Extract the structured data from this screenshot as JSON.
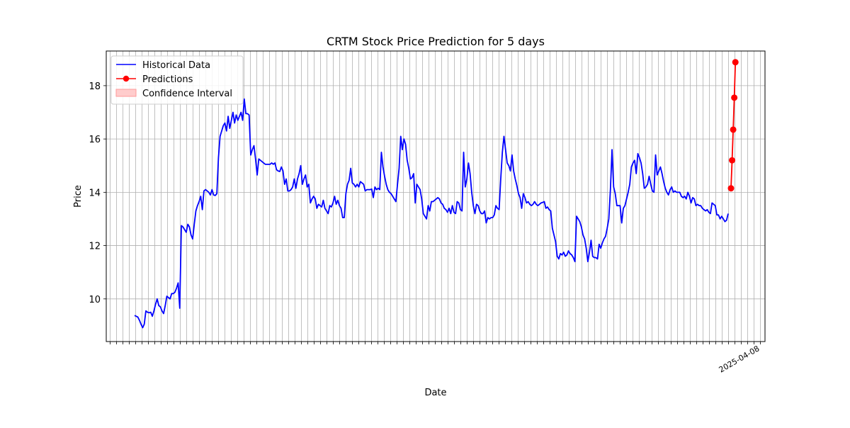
{
  "chart_data": {
    "type": "line",
    "title": "CRTM Stock Price Prediction for 5 days",
    "xlabel": "Date",
    "ylabel": "Price",
    "ylim": [
      8.4,
      19.3
    ],
    "y_ticks": [
      10,
      12,
      14,
      16,
      18
    ],
    "grid": true,
    "legend_position": "upper-left",
    "x_tick_labels_note": "x tick labels are dense, rotated dates that overlap and are illegible except the last one",
    "x_last_tick_label": "2025-04-08",
    "series": [
      {
        "name": "Historical Data",
        "color": "#0000ff",
        "marker": "none",
        "values": [
          9.38,
          9.35,
          9.32,
          9.2,
          9.05,
          8.92,
          9.05,
          9.55,
          9.5,
          9.48,
          9.5,
          9.35,
          9.55,
          9.8,
          10.0,
          9.75,
          9.7,
          9.55,
          9.45,
          9.75,
          10.1,
          10.05,
          10.0,
          10.2,
          10.2,
          10.25,
          10.4,
          10.6,
          9.65,
          12.75,
          12.7,
          12.6,
          12.5,
          12.8,
          12.7,
          12.4,
          12.25,
          12.8,
          13.3,
          13.5,
          13.65,
          13.85,
          13.35,
          14.05,
          14.1,
          14.05,
          14.0,
          13.9,
          14.1,
          13.9,
          13.88,
          13.95,
          15.3,
          16.1,
          16.3,
          16.5,
          16.6,
          16.3,
          16.85,
          16.4,
          16.7,
          17.0,
          16.6,
          16.9,
          16.7,
          16.85,
          17.0,
          16.7,
          17.5,
          16.95,
          16.95,
          16.9,
          15.4,
          15.6,
          15.75,
          15.25,
          14.65,
          15.25,
          15.2,
          15.15,
          15.1,
          15.05,
          15.05,
          15.05,
          15.05,
          15.1,
          15.05,
          15.1,
          14.85,
          14.8,
          14.78,
          14.95,
          14.8,
          14.3,
          14.5,
          14.05,
          14.05,
          14.1,
          14.2,
          14.5,
          14.15,
          14.5,
          14.7,
          15.0,
          14.3,
          14.5,
          14.65,
          14.2,
          14.3,
          13.6,
          13.75,
          13.85,
          13.75,
          13.4,
          13.55,
          13.5,
          13.45,
          13.7,
          13.4,
          13.3,
          13.2,
          13.5,
          13.45,
          13.6,
          13.85,
          13.55,
          13.7,
          13.5,
          13.4,
          13.05,
          13.05,
          13.95,
          14.3,
          14.45,
          14.9,
          14.35,
          14.3,
          14.2,
          14.3,
          14.2,
          14.4,
          14.35,
          14.3,
          14.05,
          14.1,
          14.1,
          14.1,
          14.12,
          13.8,
          14.2,
          14.1,
          14.15,
          14.1,
          15.5,
          14.95,
          14.6,
          14.3,
          14.1,
          14.0,
          13.95,
          13.85,
          13.75,
          13.65,
          14.3,
          14.9,
          16.1,
          15.6,
          16.0,
          15.8,
          15.2,
          14.9,
          14.5,
          14.55,
          14.7,
          13.6,
          14.3,
          14.2,
          14.1,
          13.75,
          13.2,
          13.1,
          13.0,
          13.5,
          13.3,
          13.65,
          13.65,
          13.7,
          13.75,
          13.8,
          13.75,
          13.6,
          13.55,
          13.4,
          13.35,
          13.25,
          13.4,
          13.2,
          13.5,
          13.25,
          13.2,
          13.65,
          13.6,
          13.35,
          13.3,
          15.5,
          14.2,
          14.5,
          15.1,
          14.7,
          14.0,
          13.5,
          13.2,
          13.55,
          13.5,
          13.3,
          13.2,
          13.2,
          13.3,
          12.85,
          13.05,
          13.0,
          13.05,
          13.05,
          13.15,
          13.5,
          13.4,
          13.35,
          14.5,
          15.5,
          16.1,
          15.6,
          15.1,
          15.0,
          14.8,
          15.4,
          14.8,
          14.5,
          14.25,
          13.95,
          13.8,
          13.4,
          13.95,
          13.8,
          13.6,
          13.65,
          13.55,
          13.5,
          13.55,
          13.65,
          13.55,
          13.5,
          13.55,
          13.6,
          13.62,
          13.65,
          13.4,
          13.45,
          13.35,
          13.3,
          12.65,
          12.4,
          12.15,
          11.6,
          11.5,
          11.7,
          11.65,
          11.75,
          11.6,
          11.65,
          11.8,
          11.7,
          11.65,
          11.55,
          11.4,
          13.1,
          13.0,
          12.9,
          12.7,
          12.4,
          12.25,
          11.9,
          11.4,
          11.75,
          12.2,
          11.6,
          11.55,
          11.55,
          11.5,
          12.05,
          11.9,
          12.1,
          12.25,
          12.35,
          12.65,
          13.0,
          14.1,
          15.6,
          14.2,
          13.95,
          13.5,
          13.5,
          13.5,
          12.85,
          13.4,
          13.5,
          13.75,
          14.0,
          14.3,
          14.95,
          15.1,
          15.2,
          14.7,
          15.45,
          15.3,
          15.1,
          14.7,
          14.15,
          14.2,
          14.3,
          14.6,
          14.3,
          14.05,
          14.0,
          15.4,
          14.65,
          14.8,
          14.95,
          14.7,
          14.4,
          14.15,
          14.0,
          13.9,
          14.1,
          14.2,
          14.0,
          14.05,
          14.0,
          14.0,
          14.0,
          13.85,
          13.8,
          13.85,
          13.75,
          14.0,
          13.85,
          13.6,
          13.8,
          13.75,
          13.5,
          13.55,
          13.5,
          13.5,
          13.4,
          13.35,
          13.3,
          13.35,
          13.25,
          13.2,
          13.6,
          13.55,
          13.5,
          13.15,
          13.15,
          13.0,
          13.1,
          13.0,
          12.9,
          12.95,
          13.2
        ]
      },
      {
        "name": "Predictions",
        "color": "#ff0000",
        "marker": "circle",
        "values": [
          14.15,
          15.2,
          16.35,
          17.55,
          18.88
        ]
      },
      {
        "name": "Confidence Interval",
        "color": "#ffbbbb",
        "kind": "band",
        "values": []
      }
    ]
  }
}
